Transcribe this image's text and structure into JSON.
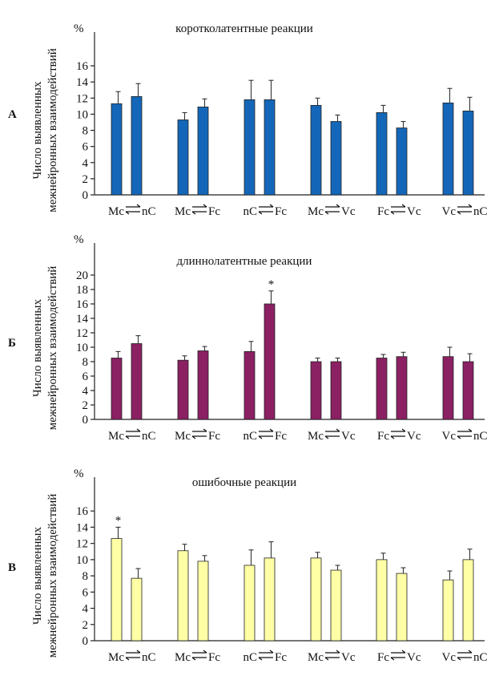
{
  "chart_data": [
    {
      "type": "bar",
      "panel": "А",
      "title": "коротколатентные реакции",
      "unit": "%",
      "ylabel_line1": "Число выявленных",
      "ylabel_line2": "межнейронных взаимодействий",
      "ylim": [
        0,
        18
      ],
      "yticks": [
        0,
        2,
        4,
        6,
        8,
        10,
        12,
        14,
        16
      ],
      "color": "#1467b8",
      "categories": [
        {
          "left": "Mc",
          "right": "nC"
        },
        {
          "left": "Mc",
          "right": "Fc"
        },
        {
          "left": "nC",
          "right": "Fc"
        },
        {
          "left": "Mc",
          "right": "Vc"
        },
        {
          "left": "Fc",
          "right": "Vc"
        },
        {
          "left": "Vc",
          "right": "nC"
        }
      ],
      "values": [
        [
          11.3,
          12.2
        ],
        [
          9.3,
          10.9
        ],
        [
          11.8,
          11.8
        ],
        [
          11.1,
          9.1
        ],
        [
          10.2,
          8.3
        ],
        [
          11.4,
          10.4
        ]
      ],
      "errors": [
        [
          1.5,
          1.6
        ],
        [
          0.9,
          1.0
        ],
        [
          2.4,
          2.4
        ],
        [
          0.9,
          0.8
        ],
        [
          0.9,
          0.8
        ],
        [
          1.8,
          1.7
        ]
      ],
      "stars": [
        [
          false,
          false
        ],
        [
          false,
          false
        ],
        [
          false,
          false
        ],
        [
          false,
          false
        ],
        [
          false,
          false
        ],
        [
          false,
          false
        ]
      ]
    },
    {
      "type": "bar",
      "panel": "Б",
      "title": "длиннолатентные реакции",
      "unit": "%",
      "ylabel_line1": "Число выявленных",
      "ylabel_line2": "межнейронных взаимодействий",
      "ylim": [
        0,
        22
      ],
      "yticks": [
        0,
        2,
        4,
        6,
        8,
        10,
        12,
        14,
        16,
        18,
        20
      ],
      "color": "#8b2063",
      "categories": [
        {
          "left": "Mc",
          "right": "nC"
        },
        {
          "left": "Mc",
          "right": "Fc"
        },
        {
          "left": "nC",
          "right": "Fc"
        },
        {
          "left": "Mc",
          "right": "Vc"
        },
        {
          "left": "Fc",
          "right": "Vc"
        },
        {
          "left": "Vc",
          "right": "nC"
        }
      ],
      "values": [
        [
          8.5,
          10.5
        ],
        [
          8.2,
          9.5
        ],
        [
          9.4,
          16.0
        ],
        [
          8.0,
          8.0
        ],
        [
          8.5,
          8.7
        ],
        [
          8.7,
          8.0
        ]
      ],
      "errors": [
        [
          0.9,
          1.1
        ],
        [
          0.6,
          0.6
        ],
        [
          1.4,
          1.8
        ],
        [
          0.5,
          0.5
        ],
        [
          0.5,
          0.6
        ],
        [
          1.3,
          1.1
        ]
      ],
      "stars": [
        [
          false,
          false
        ],
        [
          false,
          false
        ],
        [
          false,
          true
        ],
        [
          false,
          false
        ],
        [
          false,
          false
        ],
        [
          false,
          false
        ]
      ]
    },
    {
      "type": "bar",
      "panel": "В",
      "title": "ошибочные реакции",
      "unit": "%",
      "ylabel_line1": "Число выявленных",
      "ylabel_line2": "межнейронных взаимодействий",
      "ylim": [
        0,
        18
      ],
      "yticks": [
        0,
        2,
        4,
        6,
        8,
        10,
        12,
        14,
        16
      ],
      "color": "#ffffa6",
      "categories": [
        {
          "left": "Mc",
          "right": "nC"
        },
        {
          "left": "Mc",
          "right": "Fc"
        },
        {
          "left": "nC",
          "right": "Fc"
        },
        {
          "left": "Mc",
          "right": "Vc"
        },
        {
          "left": "Fc",
          "right": "Vc"
        },
        {
          "left": "Vc",
          "right": "nC"
        }
      ],
      "values": [
        [
          12.6,
          7.7
        ],
        [
          11.1,
          9.8
        ],
        [
          9.3,
          10.2
        ],
        [
          10.2,
          8.7
        ],
        [
          10.0,
          8.3
        ],
        [
          7.5,
          10.0
        ]
      ],
      "errors": [
        [
          1.4,
          1.2
        ],
        [
          0.8,
          0.7
        ],
        [
          1.9,
          2.0
        ],
        [
          0.7,
          0.6
        ],
        [
          0.8,
          0.7
        ],
        [
          1.1,
          1.3
        ]
      ],
      "stars": [
        [
          true,
          false
        ],
        [
          false,
          false
        ],
        [
          false,
          false
        ],
        [
          false,
          false
        ],
        [
          false,
          false
        ],
        [
          false,
          false
        ]
      ]
    }
  ]
}
